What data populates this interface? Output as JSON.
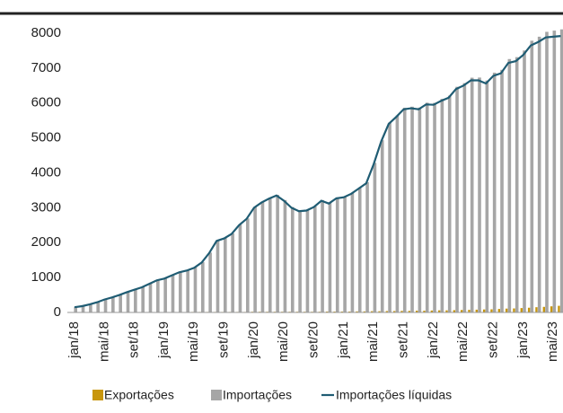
{
  "chart_data": {
    "type": "bar-line",
    "categories": [
      "jan/18",
      null,
      null,
      null,
      "mai/18",
      null,
      null,
      null,
      "set/18",
      null,
      null,
      null,
      "jan/19",
      null,
      null,
      null,
      "mai/19",
      null,
      null,
      null,
      "set/19",
      null,
      null,
      null,
      "jan/20",
      null,
      null,
      null,
      "mai/20",
      null,
      null,
      null,
      "set/20",
      null,
      null,
      null,
      "jan/21",
      null,
      null,
      null,
      "mai/21",
      null,
      null,
      null,
      "set/21",
      null,
      null,
      null,
      "jan/22",
      null,
      null,
      null,
      "mai/22",
      null,
      null,
      null,
      "set/22",
      null,
      null,
      null,
      "jan/23",
      null,
      null,
      null,
      "mai/23",
      null
    ],
    "series": [
      {
        "name": "Exportações",
        "color": "#c8960c",
        "kind": "bar",
        "values": [
          5,
          5,
          5,
          5,
          5,
          5,
          10,
          10,
          10,
          10,
          10,
          10,
          10,
          10,
          10,
          10,
          15,
          15,
          15,
          15,
          15,
          15,
          15,
          15,
          20,
          20,
          20,
          20,
          20,
          20,
          20,
          20,
          20,
          20,
          25,
          25,
          25,
          25,
          30,
          30,
          35,
          35,
          40,
          40,
          45,
          45,
          50,
          50,
          55,
          60,
          60,
          65,
          70,
          75,
          80,
          85,
          90,
          100,
          110,
          115,
          125,
          135,
          150,
          160,
          175,
          190
        ]
      },
      {
        "name": "Importações",
        "color": "#a6a6a6",
        "kind": "bar",
        "values": [
          155,
          185,
          235,
          295,
          375,
          435,
          510,
          590,
          660,
          730,
          830,
          930,
          980,
          1070,
          1160,
          1210,
          1295,
          1445,
          1715,
          2065,
          2135,
          2265,
          2515,
          2695,
          3020,
          3170,
          3280,
          3370,
          3220,
          3020,
          2920,
          2940,
          3040,
          3220,
          3145,
          3295,
          3325,
          3425,
          3580,
          3730,
          4285,
          4935,
          5440,
          5640,
          5865,
          5895,
          5870,
          6010,
          6005,
          6120,
          6210,
          6465,
          6570,
          6725,
          6730,
          6645,
          6870,
          6950,
          7260,
          7315,
          7505,
          7785,
          7900,
          8040,
          8075,
          8110
        ]
      },
      {
        "name": "Importações líquidas",
        "color": "#1f5c73",
        "kind": "line",
        "values": [
          150,
          180,
          230,
          290,
          370,
          430,
          500,
          580,
          650,
          720,
          820,
          920,
          970,
          1060,
          1150,
          1200,
          1280,
          1430,
          1700,
          2050,
          2120,
          2250,
          2500,
          2680,
          3000,
          3150,
          3260,
          3350,
          3200,
          3000,
          2900,
          2920,
          3020,
          3200,
          3120,
          3270,
          3300,
          3400,
          3550,
          3700,
          4250,
          4900,
          5400,
          5600,
          5820,
          5850,
          5820,
          5960,
          5950,
          6060,
          6150,
          6400,
          6500,
          6650,
          6650,
          6560,
          6780,
          6850,
          7150,
          7200,
          7380,
          7650,
          7750,
          7880,
          7900,
          7920
        ]
      }
    ],
    "ylim": [
      0,
      8000
    ],
    "yticks": [
      0,
      1000,
      2000,
      3000,
      4000,
      5000,
      6000,
      7000,
      8000
    ],
    "grid": false,
    "legend": "bottom"
  }
}
